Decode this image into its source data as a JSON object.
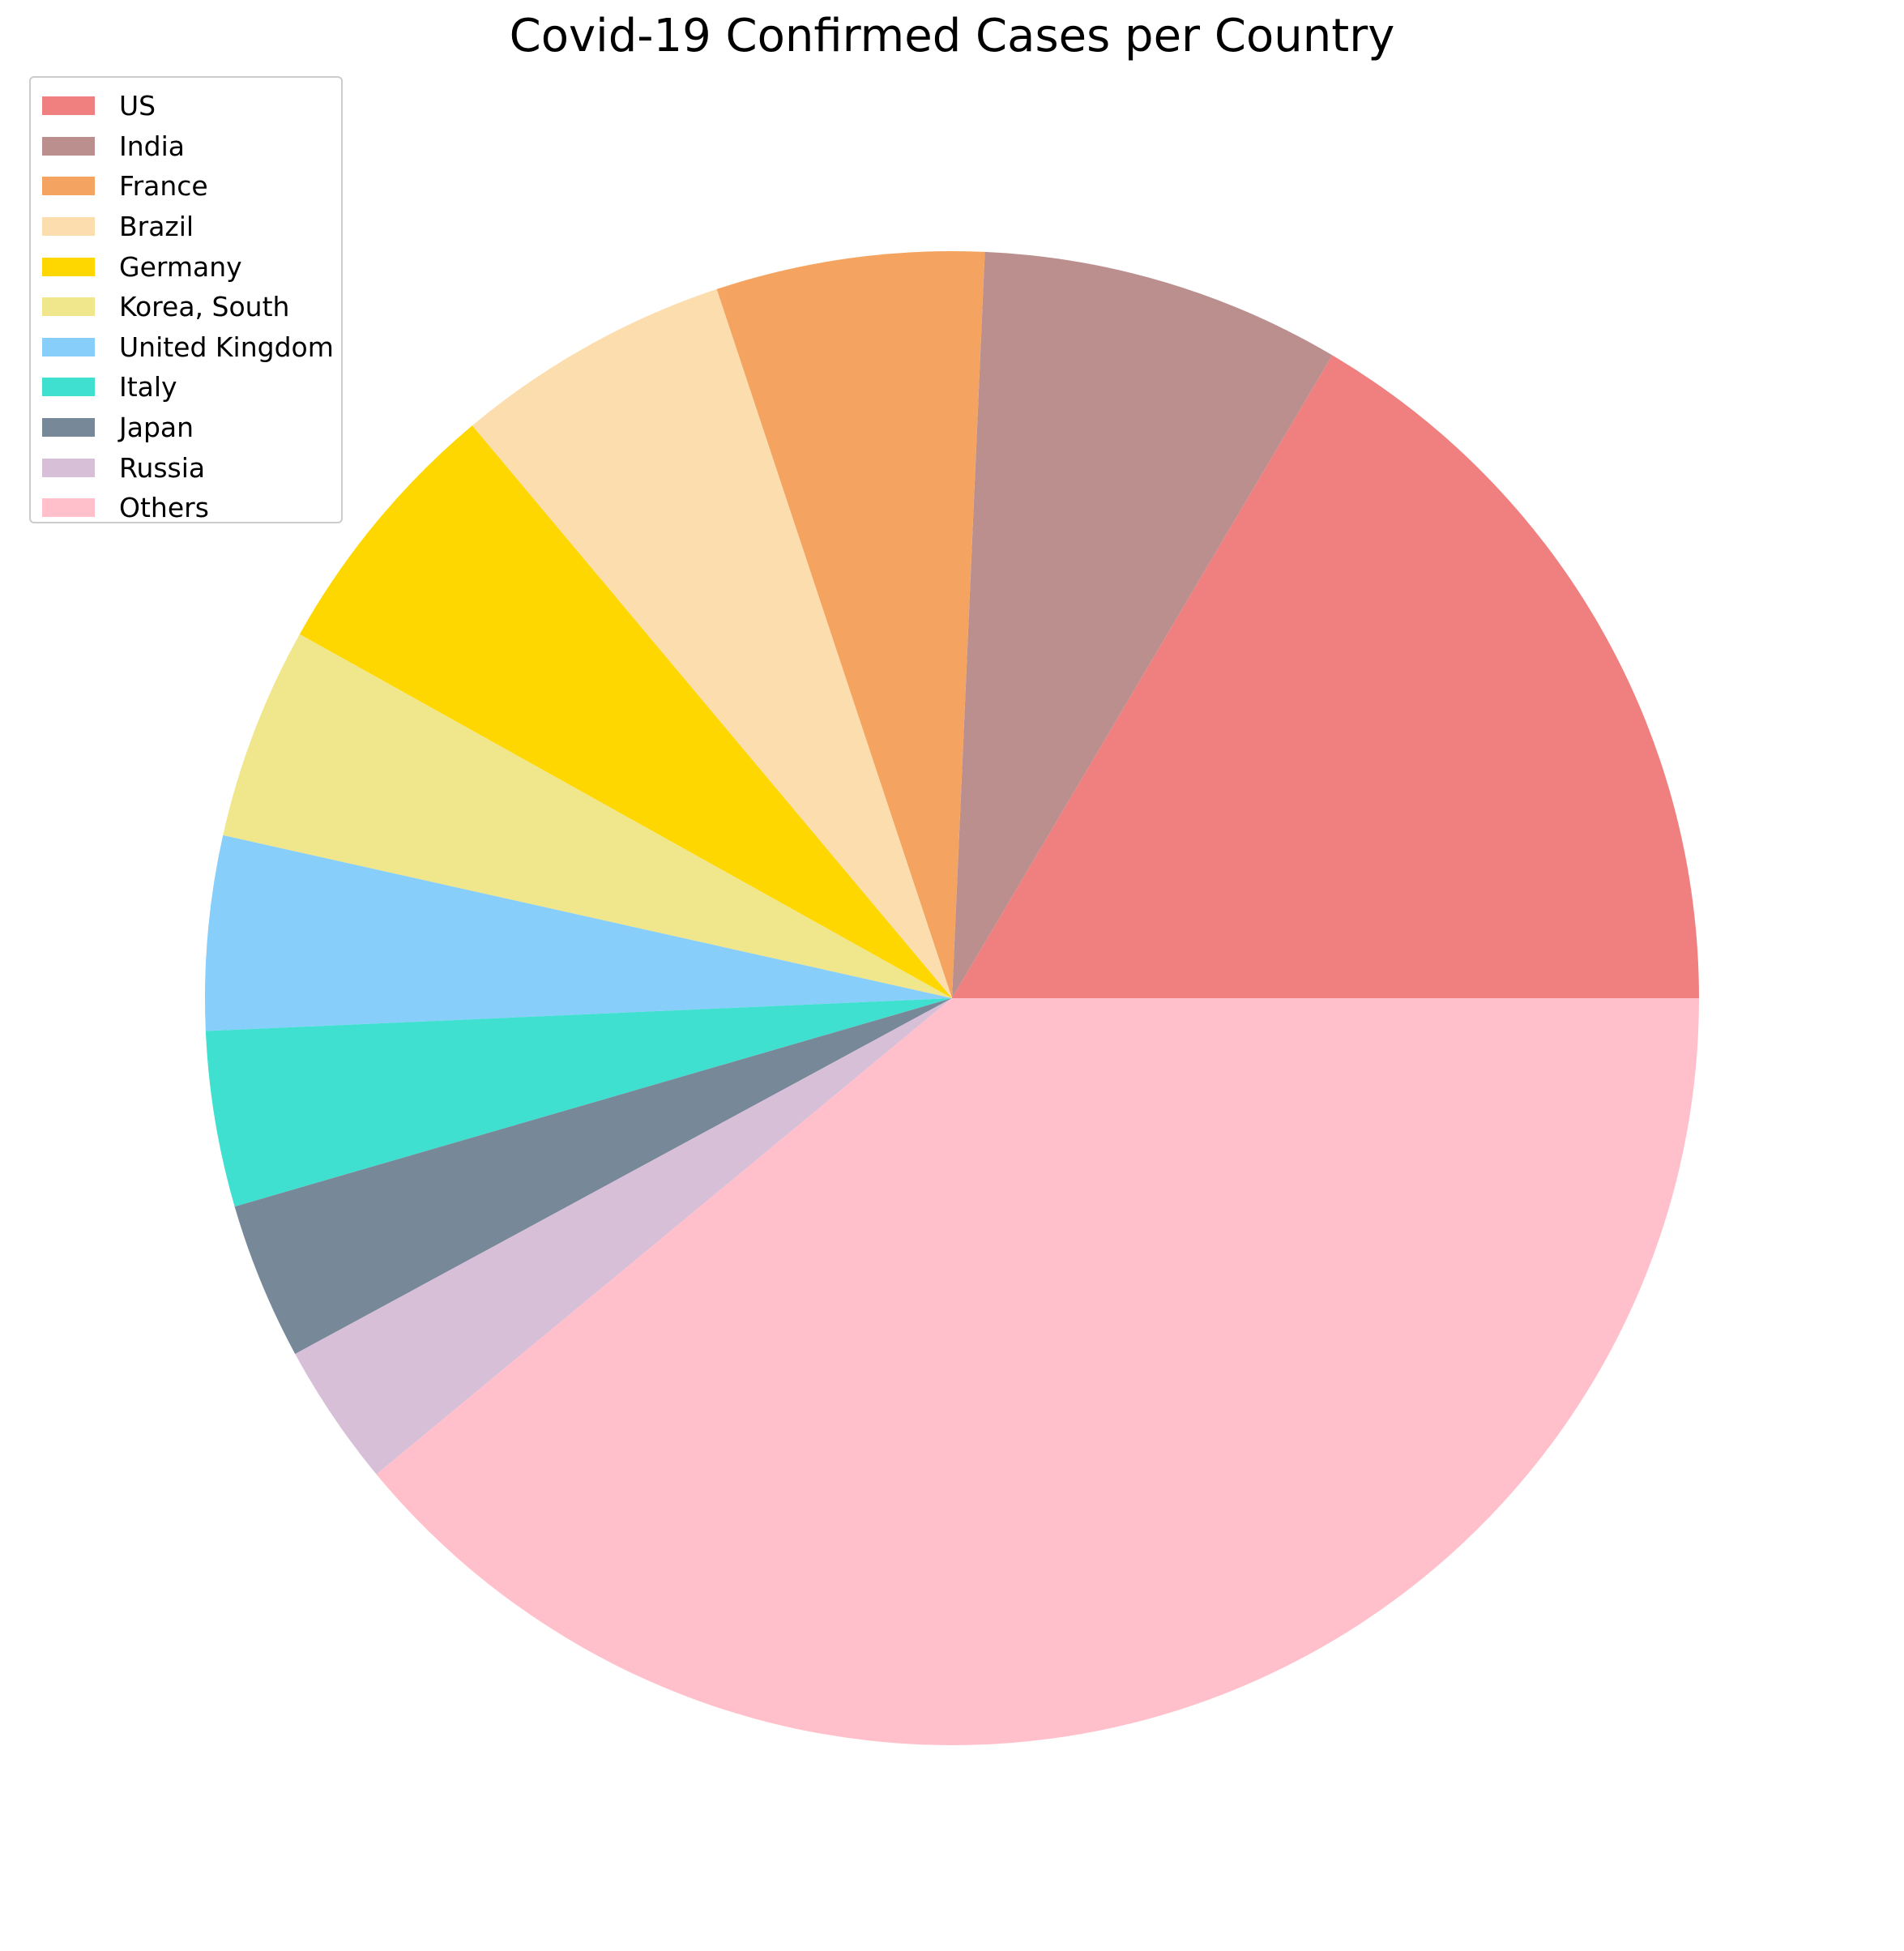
{
  "chart_data": {
    "type": "pie",
    "title": "Covid-19 Confirmed Cases per Country",
    "legend_position": "top-left",
    "start_angle_deg": 0,
    "direction": "counterclockwise",
    "slices": [
      {
        "label": "US",
        "value": 16.5,
        "color": "#F08080"
      },
      {
        "label": "India",
        "value": 7.8,
        "color": "#BC8F8F"
      },
      {
        "label": "France",
        "value": 5.8,
        "color": "#F4A460"
      },
      {
        "label": "Brazil",
        "value": 6.0,
        "color": "#FCDDAE"
      },
      {
        "label": "Germany",
        "value": 5.8,
        "color": "#FFD700"
      },
      {
        "label": "Korea, South",
        "value": 4.6,
        "color": "#F0E68C"
      },
      {
        "label": "United Kingdom",
        "value": 4.2,
        "color": "#87CEFA"
      },
      {
        "label": "Italy",
        "value": 3.8,
        "color": "#40E0D0"
      },
      {
        "label": "Japan",
        "value": 3.4,
        "color": "#778899"
      },
      {
        "label": "Russia",
        "value": 3.1,
        "color": "#D8BFD8"
      },
      {
        "label": "Others",
        "value": 39.0,
        "color": "#FFC0CB"
      }
    ]
  }
}
